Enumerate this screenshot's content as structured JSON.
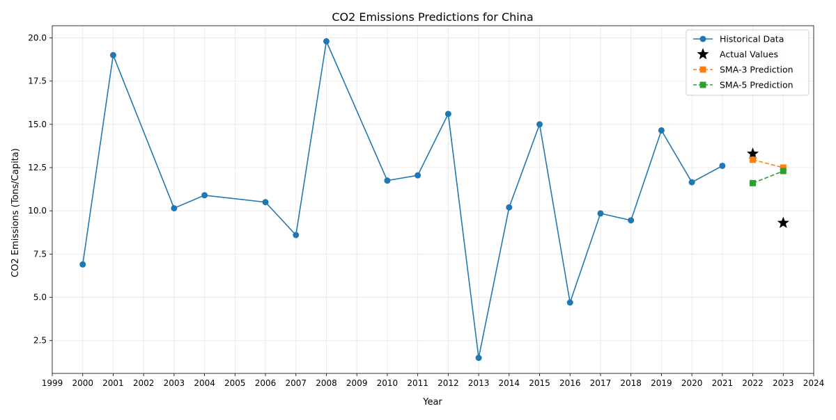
{
  "chart_data": {
    "type": "line",
    "title": "CO2 Emissions Predictions for China",
    "xlabel": "Year",
    "ylabel": "CO2 Emissions (Tons/Capita)",
    "xlim": [
      1999,
      2024
    ],
    "ylim": [
      0.6,
      20.7
    ],
    "xticks": [
      1999,
      2000,
      2001,
      2002,
      2003,
      2004,
      2005,
      2006,
      2007,
      2008,
      2009,
      2010,
      2011,
      2012,
      2013,
      2014,
      2015,
      2016,
      2017,
      2018,
      2019,
      2020,
      2021,
      2022,
      2023,
      2024
    ],
    "yticks": [
      2.5,
      5.0,
      7.5,
      10.0,
      12.5,
      15.0,
      17.5,
      20.0
    ],
    "ytick_labels": [
      "2.5",
      "5.0",
      "7.5",
      "10.0",
      "12.5",
      "15.0",
      "17.5",
      "20.0"
    ],
    "grid": true,
    "legend_position": "top-right",
    "series": [
      {
        "name": "Historical Data",
        "style": "line-circle",
        "color": "#1f77b4",
        "x": [
          2000,
          2001,
          2003,
          2004,
          2006,
          2007,
          2008,
          2010,
          2011,
          2012,
          2013,
          2014,
          2015,
          2016,
          2017,
          2018,
          2019,
          2020,
          2021
        ],
        "y": [
          6.9,
          19.0,
          10.15,
          10.9,
          10.5,
          8.6,
          19.8,
          11.75,
          12.05,
          15.6,
          1.5,
          10.2,
          15.0,
          4.7,
          9.85,
          9.45,
          14.65,
          11.65,
          12.6
        ]
      },
      {
        "name": "Actual Values",
        "style": "star",
        "color": "#000000",
        "x": [
          2022,
          2023
        ],
        "y": [
          13.3,
          9.3
        ]
      },
      {
        "name": "SMA-3 Prediction",
        "style": "dashed-square",
        "color": "#ff7f0e",
        "x": [
          2022,
          2023
        ],
        "y": [
          12.95,
          12.5
        ]
      },
      {
        "name": "SMA-5 Prediction",
        "style": "dashed-square",
        "color": "#2ca02c",
        "x": [
          2022,
          2023
        ],
        "y": [
          11.6,
          12.3
        ]
      }
    ]
  }
}
